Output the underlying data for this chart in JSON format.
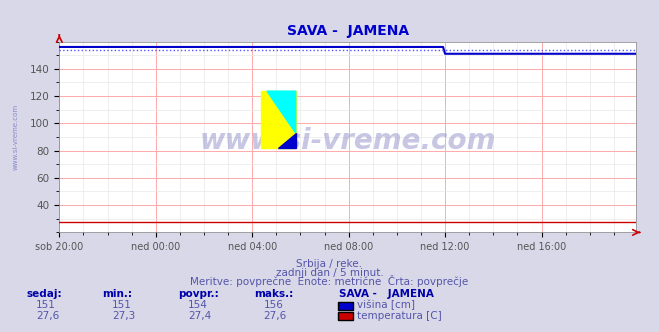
{
  "title": "SAVA -  JAMENA",
  "title_color": "#0000cc",
  "bg_color": "#d8d8e8",
  "plot_bg_color": "#ffffff",
  "grid_color_major": "#ffaaaa",
  "grid_color_minor": "#e8e8e8",
  "watermark_text": "www.si-vreme.com",
  "ylabel_text": "www.si-vreme.com",
  "xlabel_ticks": [
    "sob 20:00",
    "ned 00:00",
    "ned 04:00",
    "ned 08:00",
    "ned 12:00",
    "ned 16:00"
  ],
  "xlabel_tick_positions": [
    0,
    48,
    96,
    144,
    192,
    240
  ],
  "total_points": 288,
  "visina_value_early": 156,
  "visina_value_late": 151,
  "visina_drop_point": 192,
  "temperatura_value": 27.6,
  "visina_color": "#0000cc",
  "temperatura_color": "#cc0000",
  "visina_dotted_color": "#5555ff",
  "ymin": 20,
  "ymax": 160,
  "yticks": [
    40,
    60,
    80,
    100,
    120,
    140
  ],
  "subtitle1": "Srbija / reke.",
  "subtitle2": "zadnji dan / 5 minut.",
  "subtitle3": "Meritve: povprečne  Enote: metrične  Črta: povprečje",
  "table_headers": [
    "sedaj:",
    "min.:",
    "povpr.:",
    "maks.:",
    "SAVA -   JAMENA"
  ],
  "table_visina": [
    "151",
    "151",
    "154",
    "156"
  ],
  "table_temp": [
    "27,6",
    "27,3",
    "27,4",
    "27,6"
  ],
  "legend_visina": "višina [cm]",
  "legend_temp": "temperatura [C]",
  "table_header_color": "#0000aa",
  "table_value_color": "#5555aa",
  "subtitle_color": "#5555aa"
}
